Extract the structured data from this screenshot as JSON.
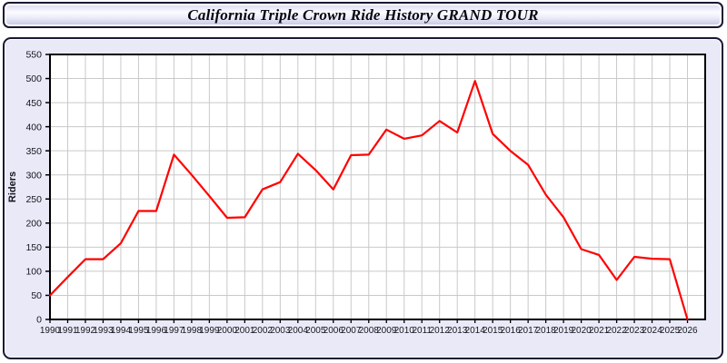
{
  "header": {
    "title": "California Triple Crown Ride History GRAND TOUR"
  },
  "colors": {
    "line": "#ff0000",
    "panel_bg": "#e9e9f8",
    "plot_bg": "#ffffff",
    "gridline": "#c9c9c9",
    "frame": "#000000",
    "tick_text": "#16161e"
  },
  "chart_data": {
    "type": "line",
    "title": "California Triple Crown Ride History GRAND TOUR",
    "xlabel": "",
    "ylabel": "Riders",
    "legend_position": "none",
    "grid": true,
    "ylim": [
      0,
      550
    ],
    "ytick_step": 50,
    "x_axis_extra_years": 1,
    "x": [
      1990,
      1991,
      1992,
      1993,
      1994,
      1995,
      1996,
      1997,
      1998,
      1999,
      2000,
      2001,
      2002,
      2003,
      2004,
      2005,
      2006,
      2007,
      2008,
      2009,
      2010,
      2011,
      2012,
      2013,
      2014,
      2015,
      2016,
      2017,
      2018,
      2019,
      2020,
      2021,
      2022,
      2023,
      2024,
      2025,
      2026
    ],
    "series": [
      {
        "name": "Riders",
        "values": [
          50,
          88,
          125,
          125,
          158,
          225,
          225,
          342,
          300,
          256,
          211,
          212,
          270,
          285,
          344,
          310,
          270,
          341,
          342,
          394,
          375,
          382,
          412,
          388,
          495,
          385,
          350,
          321,
          259,
          212,
          146,
          134,
          82,
          130,
          126,
          125,
          0
        ]
      }
    ]
  }
}
